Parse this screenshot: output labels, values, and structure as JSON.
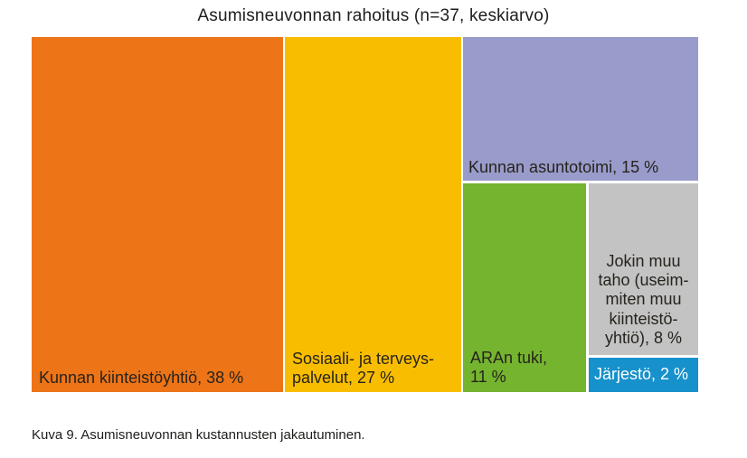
{
  "title": "Asumisneuvonnan rahoitus (n=37, keskiarvo)",
  "caption": "Kuva 9. Asumisneuvonnan kustannusten jakautuminen.",
  "treemap": {
    "segments": [
      {
        "id": "kunnan-kiinteistoyhtio",
        "label": "Kunnan kiinteistöyhtiö, 38 %",
        "value": 38,
        "color": "#ED7417",
        "text_color": "#26231d",
        "lines": [
          "Kunnan kiinteistöyhtiö, 38 %"
        ]
      },
      {
        "id": "sosiaali-ja-terveyspalvelut",
        "label": "Sosiaali- ja terveyspalvelut, 27 %",
        "value": 27,
        "color": "#F9BD00",
        "text_color": "#26231d",
        "lines": [
          "Sosiaali- ja terveys-",
          "palvelut, 27 %"
        ]
      },
      {
        "id": "kunnan-asuntotoimi",
        "label": "Kunnan asuntotoimi, 15 %",
        "value": 15,
        "color": "#999BCA",
        "text_color": "#26231d",
        "lines": [
          "Kunnan asuntotoimi, 15 %"
        ]
      },
      {
        "id": "aran-tuki",
        "label": "ARAn tuki, 11 %",
        "value": 11,
        "color": "#75B42E",
        "text_color": "#26231d",
        "lines": [
          "ARAn tuki,",
          "11 %"
        ]
      },
      {
        "id": "jokin-muu-taho",
        "label": "Jokin muu taho (useimmiten muu kiinteistöyhtiö), 8 %",
        "value": 8,
        "color": "#C3C3C3",
        "text_color": "#26231d",
        "lines": [
          "Jokin muu",
          "taho (useim-",
          "miten muu",
          "kiinteistö-",
          "yhtiö), 8 %"
        ]
      },
      {
        "id": "jarjesto",
        "label": "Järjestö, 2 %",
        "value": 2,
        "color": "#1691CB",
        "text_color": "#FFFFFF",
        "lines": [
          "Järjestö, 2 %"
        ]
      }
    ]
  },
  "chart_data": {
    "type": "treemap",
    "title": "Asumisneuvonnan rahoitus (n=37, keskiarvo)",
    "n": 37,
    "aggregation": "keskiarvo",
    "unit": "%",
    "items": [
      {
        "label": "Kunnan kiinteistöyhtiö",
        "value": 38,
        "color": "#ED7417"
      },
      {
        "label": "Sosiaali- ja terveyspalvelut",
        "value": 27,
        "color": "#F9BD00"
      },
      {
        "label": "Kunnan asuntotoimi",
        "value": 15,
        "color": "#999BCA"
      },
      {
        "label": "ARAn tuki",
        "value": 11,
        "color": "#75B42E"
      },
      {
        "label": "Jokin muu taho (useimmiten muu kiinteistöyhtiö)",
        "value": 8,
        "color": "#C3C3C3"
      },
      {
        "label": "Järjestö",
        "value": 2,
        "color": "#1691CB"
      }
    ]
  }
}
